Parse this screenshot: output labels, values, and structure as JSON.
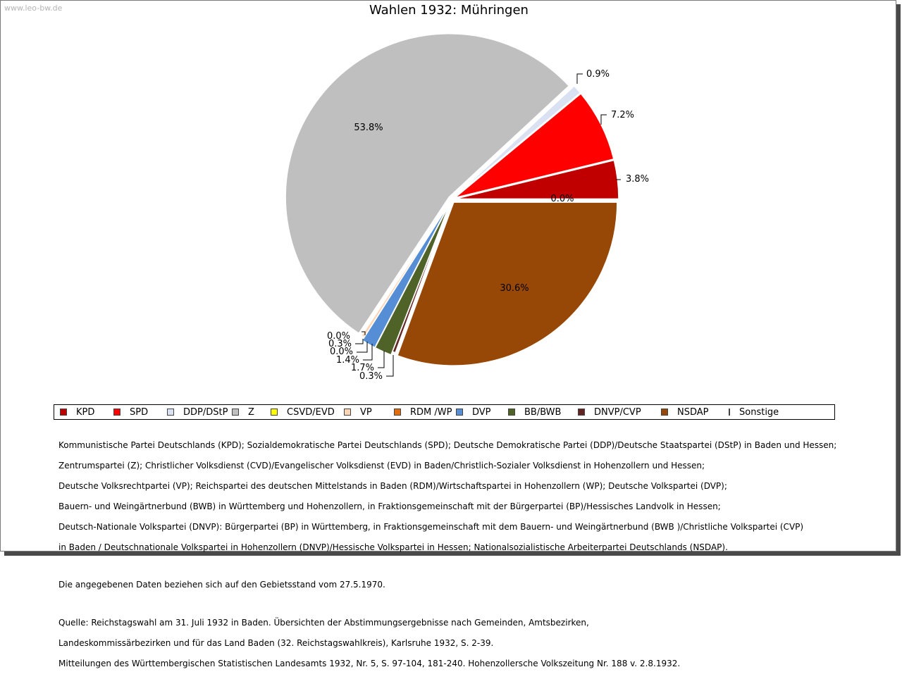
{
  "watermark": "www.leo-bw.de",
  "chart_data": {
    "type": "pie",
    "title": "Wahlen 1932: Mühringen",
    "slices": [
      {
        "label": "KPD",
        "value": 3.8,
        "display": "3.8%",
        "color": "#c00000"
      },
      {
        "label": "SPD",
        "value": 7.2,
        "display": "7.2%",
        "color": "#ff0000"
      },
      {
        "label": "DDP/DStP",
        "value": 0.9,
        "display": "0.9%",
        "color": "#d9e1f2"
      },
      {
        "label": "Z",
        "value": 53.8,
        "display": "53.8%",
        "color": "#bfbfbf"
      },
      {
        "label": "CSVD/EVD",
        "value": 0.0,
        "display": "0.0%",
        "color": "#ffff00"
      },
      {
        "label": "VP",
        "value": 0.3,
        "display": "0.3%",
        "color": "#fcd5b4"
      },
      {
        "label": "RDM /WP",
        "value": 0.0,
        "display": "0.0%",
        "color": "#e26b0a"
      },
      {
        "label": "DVP",
        "value": 1.4,
        "display": "1.4%",
        "color": "#558ed5"
      },
      {
        "label": "BB/BWB",
        "value": 1.7,
        "display": "1.7%",
        "color": "#4f6228"
      },
      {
        "label": "DNVP/CVP",
        "value": 0.3,
        "display": "0.3%",
        "color": "#632523"
      },
      {
        "label": "NSDAP",
        "value": 30.6,
        "display": "30.6%",
        "color": "#974706"
      },
      {
        "label": "Sonstige",
        "value": 0.0,
        "display": "0.0%",
        "color": "#ffc000"
      }
    ],
    "legend_position": "bottom"
  },
  "notes": {
    "parties": [
      "Kommunistische Partei Deutschlands (KPD); Sozialdemokratische Partei Deutschlands (SPD); Deutsche Demokratische Partei (DDP)/Deutsche Staatspartei (DStP) in Baden und Hessen;",
      "Zentrumspartei (Z); Christlicher Volksdienst (CVD)/Evangelischer Volksdienst (EVD) in Baden/Christlich-Sozialer Volksdienst in Hohenzollern und Hessen;",
      "Deutsche Volksrechtpartei (VP); Reichspartei des deutschen Mittelstands in Baden (RDM)/Wirtschaftspartei in Hohenzollern (WP); Deutsche Volkspartei (DVP);",
      "Bauern- und Weingärtnerbund (BWB) in Württemberg und Hohenzollern, in Fraktionsgemeinschaft mit der Bürgerpartei (BP)/Hessisches Landvolk in Hessen;",
      "Deutsch-Nationale Volkspartei (DNVP): Bürgerpartei (BP) in Württemberg, in Fraktionsgemeinschaft mit dem Bauern- und Weingärtnerbund (BWB )/Christliche Volkspartei (CVP)",
      "in Baden / Deutschnationale Volkspartei in Hohenzollern (DNVP)/Hessische Volkspartei in Hessen; Nationalsozialistische Arbeiterpartei Deutschlands (NSDAP)."
    ],
    "territory": "Die angegebenen Daten beziehen sich auf den Gebietsstand vom 27.5.1970.",
    "source": [
      "Quelle: Reichstagswahl am 31. Juli 1932 in Baden. Übersichten der Abstimmungsergebnisse nach Gemeinden, Amtsbezirken,",
      "Landeskommissärbezirken und für das Land Baden (32. Reichstagswahlkreis), Karlsruhe 1932, S. 2-39.",
      "Mitteilungen des Württembergischen Statistischen Landesamts 1932, Nr. 5, S. 97-104, 181-240. Hohenzollersche Volkszeitung Nr. 188 v. 2.8.1932."
    ]
  }
}
